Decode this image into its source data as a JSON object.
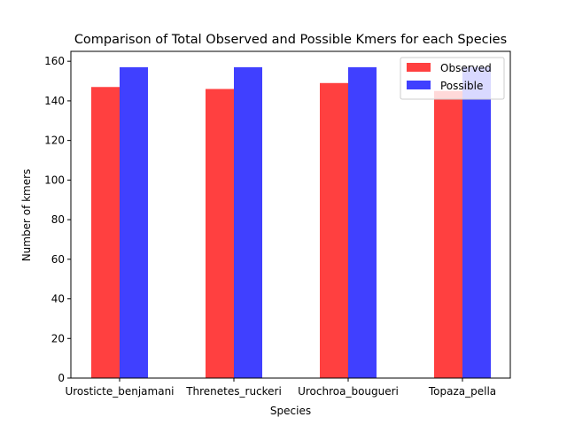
{
  "chart_data": {
    "type": "bar",
    "title": "Comparison of Total Observed and Possible Kmers for each Species",
    "xlabel": "Species",
    "ylabel": "Number of kmers",
    "categories": [
      "Urosticte_benjamani",
      "Threnetes_ruckeri",
      "Urochroa_bougueri",
      "Topaza_pella"
    ],
    "series": [
      {
        "name": "Observed",
        "values": [
          147,
          146,
          149,
          145
        ],
        "color": "#ff4040"
      },
      {
        "name": "Possible",
        "values": [
          157,
          157,
          157,
          157
        ],
        "color": "#4040ff"
      }
    ],
    "ylim": [
      0,
      165
    ],
    "yticks": [
      0,
      20,
      40,
      60,
      80,
      100,
      120,
      140,
      160
    ],
    "grid": false,
    "legend_position": "top-right"
  }
}
